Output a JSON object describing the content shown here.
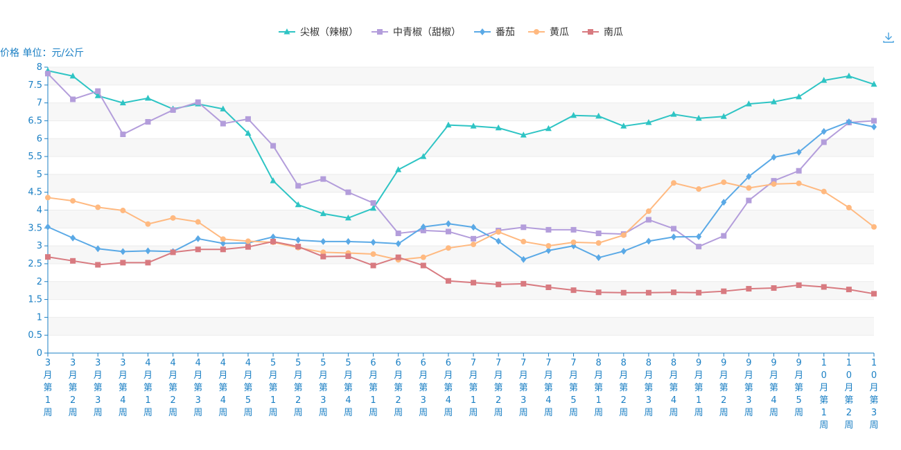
{
  "chart_data": {
    "type": "line",
    "title": "",
    "ylabel": "价格 单位：元/公斤",
    "ylim": [
      0,
      8
    ],
    "yticks": [
      "0",
      "0.5",
      "1",
      "1.5",
      "2",
      "2.5",
      "3",
      "3.5",
      "4",
      "4.5",
      "5",
      "5.5",
      "6",
      "6.5",
      "7",
      "7.5",
      "8"
    ],
    "grid": "horizontal-bands",
    "legend_position": "top-center",
    "categories": [
      "3月第1周",
      "3月第2周",
      "3月第3周",
      "3月第4周",
      "4月第1周",
      "4月第2周",
      "4月第3周",
      "4月第4周",
      "4月第5周",
      "5月第1周",
      "5月第2周",
      "5月第3周",
      "5月第4周",
      "6月第1周",
      "6月第2周",
      "6月第3周",
      "6月第4周",
      "7月第1周",
      "7月第2周",
      "7月第3周",
      "7月第4周",
      "7月第5周",
      "8月第1周",
      "8月第2周",
      "8月第3周",
      "8月第4周",
      "9月第1周",
      "9月第2周",
      "9月第3周",
      "9月第4周",
      "9月第5周",
      "10月第1周",
      "10月第2周",
      "10月第3周"
    ],
    "series": [
      {
        "name": "尖椒（辣椒）",
        "color": "#2ec4c4",
        "marker": "triangle",
        "values": [
          7.9,
          7.75,
          7.2,
          7.0,
          7.13,
          6.83,
          6.97,
          6.83,
          6.15,
          4.82,
          4.15,
          3.9,
          3.78,
          4.05,
          5.13,
          5.5,
          6.38,
          6.35,
          6.3,
          6.1,
          6.28,
          6.65,
          6.63,
          6.35,
          6.45,
          6.68,
          6.57,
          6.62,
          6.97,
          7.03,
          7.17,
          7.63,
          7.75,
          7.52
        ]
      },
      {
        "name": "中青椒（甜椒）",
        "color": "#b39ddb",
        "marker": "square",
        "values": [
          7.82,
          7.1,
          7.33,
          6.12,
          6.47,
          6.8,
          7.02,
          6.42,
          6.55,
          5.8,
          4.68,
          4.87,
          4.5,
          4.2,
          3.35,
          3.43,
          3.4,
          3.2,
          3.43,
          3.52,
          3.45,
          3.45,
          3.35,
          3.33,
          3.73,
          3.48,
          2.98,
          3.28,
          4.27,
          4.82,
          5.1,
          5.9,
          6.45,
          6.5
        ]
      },
      {
        "name": "番茄",
        "color": "#5aa9e6",
        "marker": "diamond",
        "values": [
          3.53,
          3.22,
          2.92,
          2.84,
          2.86,
          2.84,
          3.2,
          3.07,
          3.08,
          3.25,
          3.16,
          3.12,
          3.12,
          3.1,
          3.06,
          3.53,
          3.62,
          3.52,
          3.13,
          2.62,
          2.87,
          3.0,
          2.67,
          2.85,
          3.13,
          3.25,
          3.26,
          4.22,
          4.94,
          5.48,
          5.62,
          6.2,
          6.47,
          6.33
        ]
      },
      {
        "name": "黄瓜",
        "color": "#ffb980",
        "marker": "circle",
        "values": [
          4.35,
          4.26,
          4.08,
          3.99,
          3.61,
          3.78,
          3.67,
          3.19,
          3.13,
          3.1,
          2.95,
          2.82,
          2.8,
          2.77,
          2.61,
          2.68,
          2.94,
          3.04,
          3.39,
          3.12,
          3.0,
          3.1,
          3.08,
          3.3,
          3.97,
          4.76,
          4.59,
          4.78,
          4.62,
          4.73,
          4.75,
          4.52,
          4.07,
          3.53
        ]
      },
      {
        "name": "南瓜",
        "color": "#d87a80",
        "marker": "square",
        "values": [
          2.69,
          2.58,
          2.47,
          2.53,
          2.53,
          2.82,
          2.9,
          2.9,
          2.97,
          3.12,
          2.98,
          2.7,
          2.71,
          2.45,
          2.68,
          2.45,
          2.02,
          1.97,
          1.92,
          1.94,
          1.84,
          1.76,
          1.7,
          1.69,
          1.69,
          1.7,
          1.69,
          1.73,
          1.8,
          1.82,
          1.9,
          1.85,
          1.78,
          1.66
        ]
      }
    ]
  },
  "toolbox": {
    "download_icon": "download-icon"
  }
}
